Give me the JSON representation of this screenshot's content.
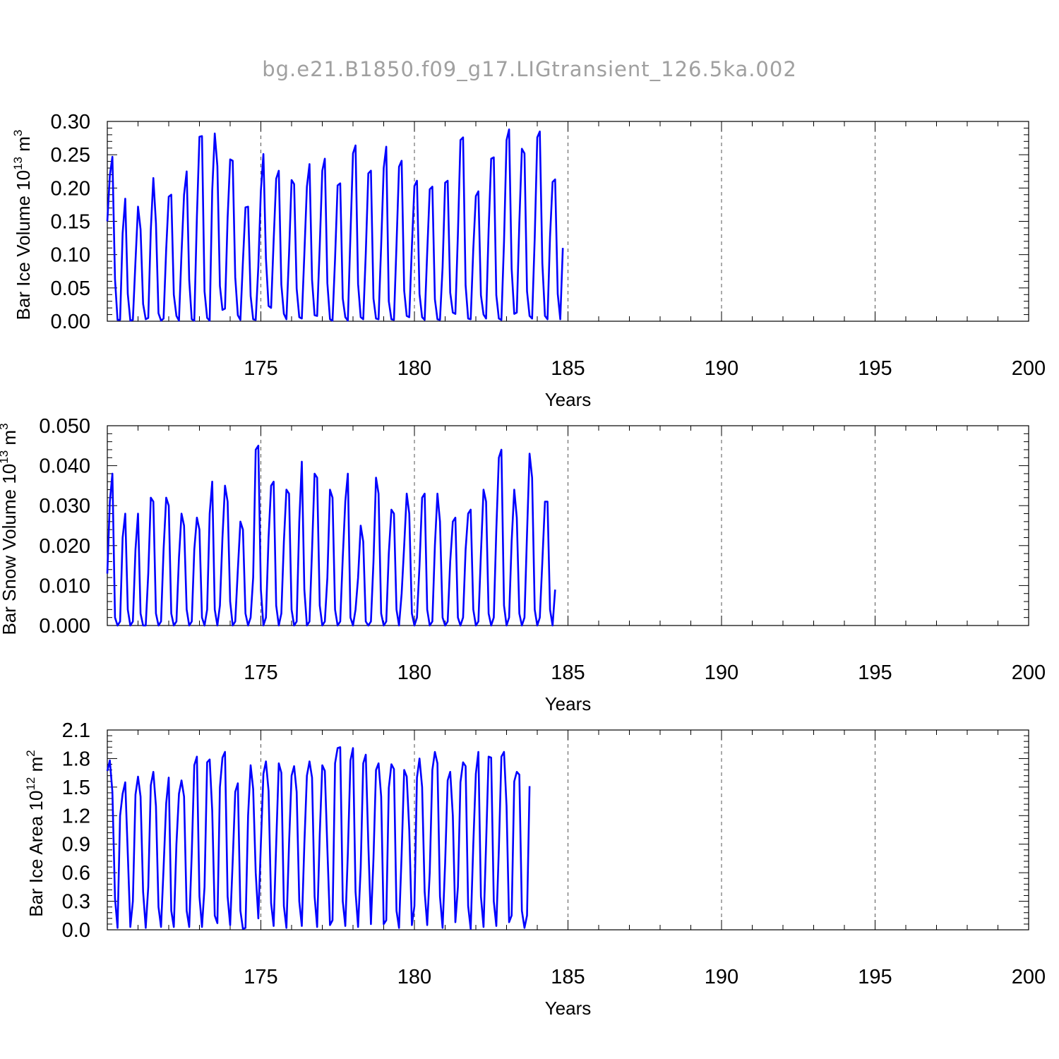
{
  "title": "bg.e21.B1850.f09_g17.LIGtransient_126.5ka.002",
  "series_color": "#0000ff",
  "chart_data": [
    {
      "type": "line",
      "ylabel": "Bar Ice Volume 10",
      "ylabel_exp": "13",
      "ylabel_unit": " m",
      "ylabel_unit_exp": "3",
      "xlabel": "Years",
      "xlim": [
        170.0,
        200.0
      ],
      "ylim": [
        0.0,
        0.3
      ],
      "xticks": [
        175,
        180,
        185,
        190,
        195,
        200
      ],
      "yticks": [
        "0.00",
        "0.05",
        "0.10",
        "0.15",
        "0.20",
        "0.25",
        "0.30"
      ],
      "ytick_values": [
        0.0,
        0.05,
        0.1,
        0.15,
        0.2,
        0.25,
        0.3
      ],
      "x_start": 170.0,
      "x_step": 0.08333,
      "values": [
        0.15,
        0.219,
        0.247,
        0.063,
        0.002,
        0.002,
        0.132,
        0.184,
        0.041,
        0.001,
        0.002,
        0.09,
        0.172,
        0.138,
        0.026,
        0.003,
        0.005,
        0.137,
        0.215,
        0.147,
        0.012,
        0.001,
        0.004,
        0.108,
        0.187,
        0.19,
        0.04,
        0.008,
        0.001,
        0.102,
        0.19,
        0.225,
        0.062,
        0.003,
        0.001,
        0.157,
        0.277,
        0.278,
        0.045,
        0.005,
        0.001,
        0.196,
        0.282,
        0.233,
        0.053,
        0.017,
        0.019,
        0.155,
        0.243,
        0.241,
        0.066,
        0.009,
        0.002,
        0.09,
        0.171,
        0.172,
        0.038,
        0.003,
        0.002,
        0.082,
        0.196,
        0.251,
        0.094,
        0.023,
        0.02,
        0.121,
        0.214,
        0.226,
        0.055,
        0.011,
        0.003,
        0.101,
        0.212,
        0.206,
        0.049,
        0.006,
        0.004,
        0.101,
        0.202,
        0.236,
        0.062,
        0.009,
        0.008,
        0.113,
        0.226,
        0.244,
        0.057,
        0.003,
        0.001,
        0.094,
        0.204,
        0.207,
        0.034,
        0.006,
        0.001,
        0.13,
        0.252,
        0.264,
        0.056,
        0.006,
        0.003,
        0.102,
        0.222,
        0.226,
        0.034,
        0.004,
        0.003,
        0.114,
        0.23,
        0.262,
        0.03,
        0.003,
        0.002,
        0.114,
        0.232,
        0.241,
        0.046,
        0.008,
        0.006,
        0.112,
        0.203,
        0.211,
        0.041,
        0.006,
        0.002,
        0.103,
        0.198,
        0.202,
        0.033,
        0.003,
        0.002,
        0.081,
        0.208,
        0.211,
        0.043,
        0.013,
        0.011,
        0.131,
        0.272,
        0.276,
        0.054,
        0.004,
        0.003,
        0.109,
        0.188,
        0.195,
        0.039,
        0.01,
        0.004,
        0.137,
        0.244,
        0.246,
        0.039,
        0.004,
        0.002,
        0.119,
        0.272,
        0.288,
        0.079,
        0.011,
        0.013,
        0.148,
        0.259,
        0.252,
        0.045,
        0.008,
        0.004,
        0.125,
        0.276,
        0.285,
        0.087,
        0.008,
        0.003,
        0.127,
        0.209,
        0.213,
        0.041,
        0.003,
        0.11
      ]
    },
    {
      "type": "line",
      "ylabel": "Bar Snow Volume 10",
      "ylabel_exp": "13",
      "ylabel_unit": " m",
      "ylabel_unit_exp": "3",
      "xlabel": "Years",
      "xlim": [
        170.0,
        200.0
      ],
      "ylim": [
        0.0,
        0.05
      ],
      "xticks": [
        175,
        180,
        185,
        190,
        195,
        200
      ],
      "yticks": [
        "0.000",
        "0.010",
        "0.020",
        "0.030",
        "0.040",
        "0.050"
      ],
      "ytick_values": [
        0.0,
        0.01,
        0.02,
        0.03,
        0.04,
        0.05
      ],
      "x_start": 170.0,
      "x_step": 0.08333,
      "values": [
        0.013,
        0.031,
        0.038,
        0.002,
        0.0,
        0.001,
        0.022,
        0.028,
        0.004,
        0.0,
        0.001,
        0.019,
        0.028,
        0.003,
        0.0,
        0.0,
        0.013,
        0.032,
        0.031,
        0.003,
        0.0,
        0.001,
        0.019,
        0.032,
        0.03,
        0.003,
        0.0,
        0.001,
        0.017,
        0.028,
        0.025,
        0.004,
        0.0,
        0.001,
        0.019,
        0.027,
        0.024,
        0.002,
        0.0,
        0.004,
        0.028,
        0.036,
        0.004,
        0.0,
        0.005,
        0.022,
        0.035,
        0.031,
        0.006,
        0.0,
        0.001,
        0.014,
        0.026,
        0.024,
        0.003,
        0.0,
        0.002,
        0.012,
        0.044,
        0.045,
        0.009,
        0.0,
        0.002,
        0.022,
        0.035,
        0.036,
        0.005,
        0.0,
        0.003,
        0.021,
        0.034,
        0.033,
        0.004,
        0.0,
        0.001,
        0.026,
        0.041,
        0.009,
        0.0,
        0.001,
        0.019,
        0.038,
        0.037,
        0.005,
        0.0,
        0.001,
        0.012,
        0.034,
        0.032,
        0.004,
        0.0,
        0.001,
        0.017,
        0.031,
        0.038,
        0.002,
        0.0,
        0.004,
        0.012,
        0.025,
        0.021,
        0.001,
        0.0,
        0.001,
        0.016,
        0.037,
        0.033,
        0.003,
        0.0,
        0.001,
        0.018,
        0.029,
        0.028,
        0.004,
        0.0,
        0.008,
        0.02,
        0.033,
        0.028,
        0.003,
        0.0,
        0.002,
        0.015,
        0.032,
        0.033,
        0.004,
        0.0,
        0.001,
        0.02,
        0.033,
        0.026,
        0.002,
        0.0,
        0.001,
        0.016,
        0.026,
        0.027,
        0.002,
        0.0,
        0.002,
        0.019,
        0.028,
        0.029,
        0.004,
        0.0,
        0.001,
        0.018,
        0.034,
        0.031,
        0.003,
        0.0,
        0.002,
        0.024,
        0.042,
        0.044,
        0.005,
        0.0,
        0.002,
        0.021,
        0.034,
        0.027,
        0.003,
        0.0,
        0.002,
        0.023,
        0.043,
        0.037,
        0.004,
        0.0,
        0.002,
        0.016,
        0.031,
        0.031,
        0.004,
        0.0,
        0.009
      ]
    },
    {
      "type": "line",
      "ylabel": "Bar Ice Area 10",
      "ylabel_exp": "12",
      "ylabel_unit": " m",
      "ylabel_unit_exp": "2",
      "xlabel": "Years",
      "xlim": [
        170.0,
        200.0
      ],
      "ylim": [
        0.0,
        2.1
      ],
      "xticks": [
        175,
        180,
        185,
        190,
        195,
        200
      ],
      "yticks": [
        "0.0",
        "0.3",
        "0.6",
        "0.9",
        "1.2",
        "1.5",
        "1.8",
        "2.1"
      ],
      "ytick_values": [
        0.0,
        0.3,
        0.6,
        0.9,
        1.2,
        1.5,
        1.8,
        2.1
      ],
      "x_start": 170.0,
      "x_step": 0.08333,
      "values": [
        1.67,
        1.78,
        1.45,
        0.33,
        0.02,
        1.2,
        1.43,
        1.55,
        0.8,
        0.03,
        0.3,
        1.42,
        1.61,
        1.4,
        0.4,
        0.02,
        0.45,
        1.52,
        1.66,
        1.3,
        0.24,
        0.03,
        0.65,
        1.33,
        1.6,
        0.2,
        0.03,
        0.9,
        1.43,
        1.57,
        1.4,
        0.2,
        0.03,
        0.8,
        1.73,
        1.82,
        0.35,
        0.03,
        0.45,
        1.76,
        1.79,
        1.25,
        0.15,
        0.07,
        1.5,
        1.81,
        1.87,
        0.35,
        0.05,
        0.72,
        1.45,
        1.54,
        0.2,
        0.01,
        0.02,
        1.2,
        1.73,
        1.48,
        0.6,
        0.12,
        0.9,
        1.64,
        1.77,
        1.46,
        0.28,
        0.04,
        0.9,
        1.75,
        1.65,
        0.25,
        0.02,
        0.9,
        1.62,
        1.72,
        1.45,
        0.3,
        0.04,
        0.9,
        1.62,
        1.77,
        1.6,
        0.35,
        0.03,
        1.0,
        1.73,
        1.67,
        0.85,
        0.05,
        0.1,
        1.75,
        1.91,
        1.92,
        0.3,
        0.04,
        0.8,
        1.78,
        1.91,
        0.4,
        0.03,
        0.65,
        1.75,
        1.84,
        0.9,
        0.06,
        0.75,
        1.68,
        1.75,
        1.4,
        0.06,
        0.1,
        1.49,
        1.74,
        1.69,
        0.2,
        0.02,
        0.8,
        1.68,
        1.61,
        1.05,
        0.05,
        0.25,
        1.6,
        1.8,
        1.5,
        0.4,
        0.05,
        0.6,
        1.68,
        1.87,
        1.75,
        0.35,
        0.02,
        0.7,
        1.57,
        1.66,
        1.2,
        0.08,
        0.45,
        1.55,
        1.76,
        1.72,
        0.25,
        0.01,
        0.9,
        1.64,
        1.87,
        0.35,
        0.03,
        0.9,
        1.82,
        1.81,
        0.3,
        0.04,
        0.85,
        1.82,
        1.87,
        1.3,
        0.08,
        0.15,
        1.56,
        1.66,
        1.63,
        0.2,
        0.02,
        0.15,
        1.51
      ]
    }
  ]
}
